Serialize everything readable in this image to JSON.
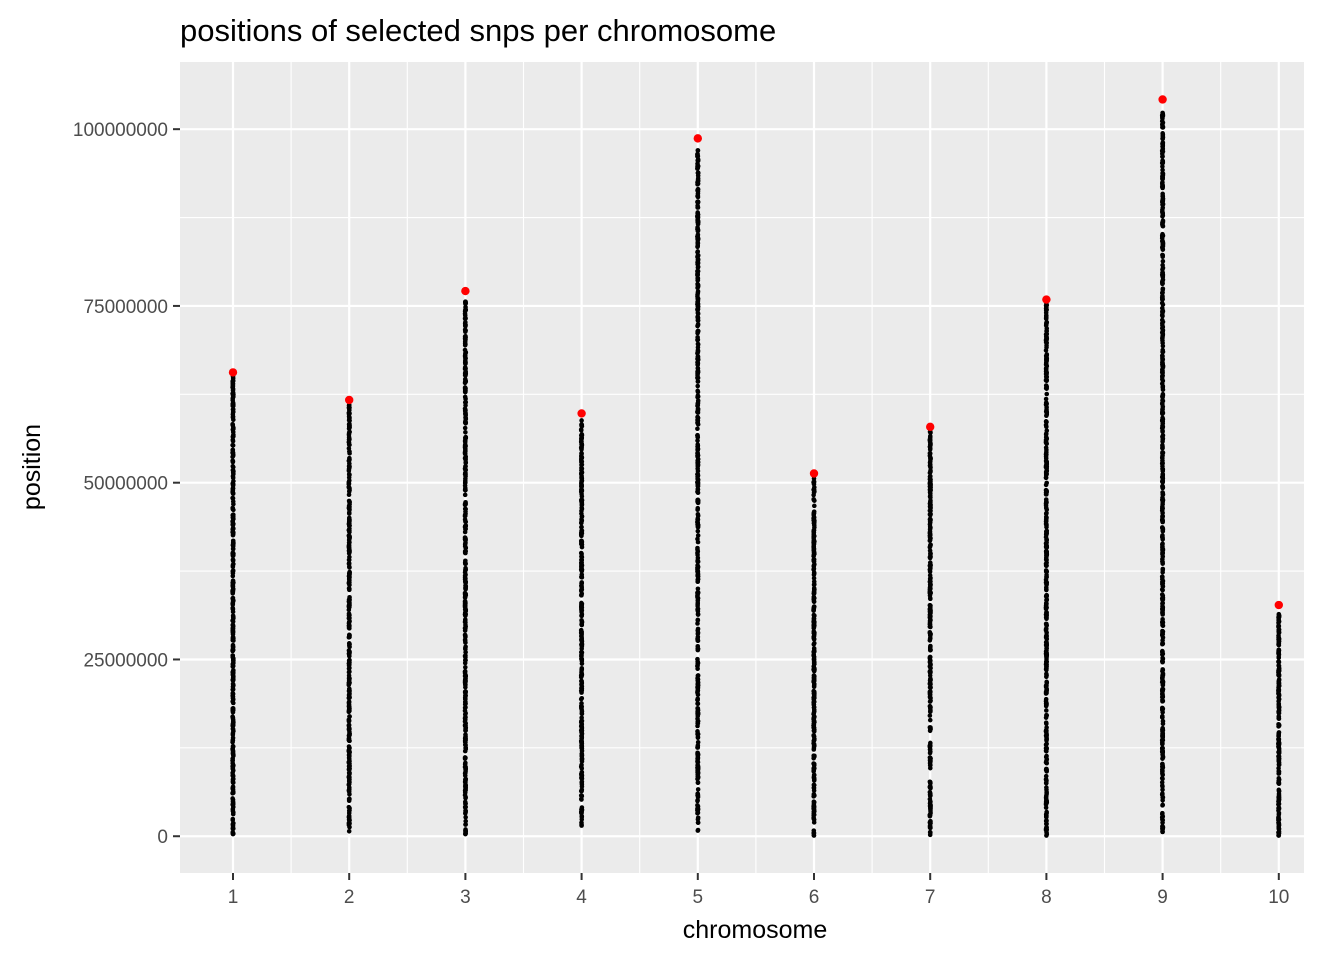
{
  "chart_data": {
    "type": "scatter",
    "title": "positions of selected snps per chromosome",
    "xlabel": "chromosome",
    "ylabel": "position",
    "x_categories": [
      "1",
      "2",
      "3",
      "4",
      "5",
      "6",
      "7",
      "8",
      "9",
      "10"
    ],
    "y_ticks": [
      0,
      25000000,
      50000000,
      75000000,
      100000000
    ],
    "y_tick_labels": [
      "0",
      "25000000",
      "50000000",
      "75000000",
      "100000000"
    ],
    "ylim": [
      -5200000,
      109500000
    ],
    "grid": true,
    "legend": "none",
    "colors": {
      "panel_background": "#ebebeb",
      "grid": "#ffffff",
      "points": "#000000",
      "highlight": "#ff0000"
    },
    "series": [
      {
        "chromosome": "1",
        "min_position": 300000,
        "max_position": 65000000,
        "highlight_position": 65600000
      },
      {
        "chromosome": "2",
        "min_position": 700000,
        "max_position": 61000000,
        "highlight_position": 61700000
      },
      {
        "chromosome": "3",
        "min_position": 300000,
        "max_position": 75600000,
        "highlight_position": 77100000
      },
      {
        "chromosome": "4",
        "min_position": 1500000,
        "max_position": 58800000,
        "highlight_position": 59800000
      },
      {
        "chromosome": "5",
        "min_position": 800000,
        "max_position": 97000000,
        "highlight_position": 98700000
      },
      {
        "chromosome": "6",
        "min_position": 100000,
        "max_position": 50600000,
        "highlight_position": 51300000
      },
      {
        "chromosome": "7",
        "min_position": 200000,
        "max_position": 57200000,
        "highlight_position": 57900000
      },
      {
        "chromosome": "8",
        "min_position": 100000,
        "max_position": 75300000,
        "highlight_position": 75900000
      },
      {
        "chromosome": "9",
        "min_position": 600000,
        "max_position": 102300000,
        "highlight_position": 104200000
      },
      {
        "chromosome": "10",
        "min_position": 100000,
        "max_position": 31400000,
        "highlight_position": 32700000
      }
    ]
  }
}
